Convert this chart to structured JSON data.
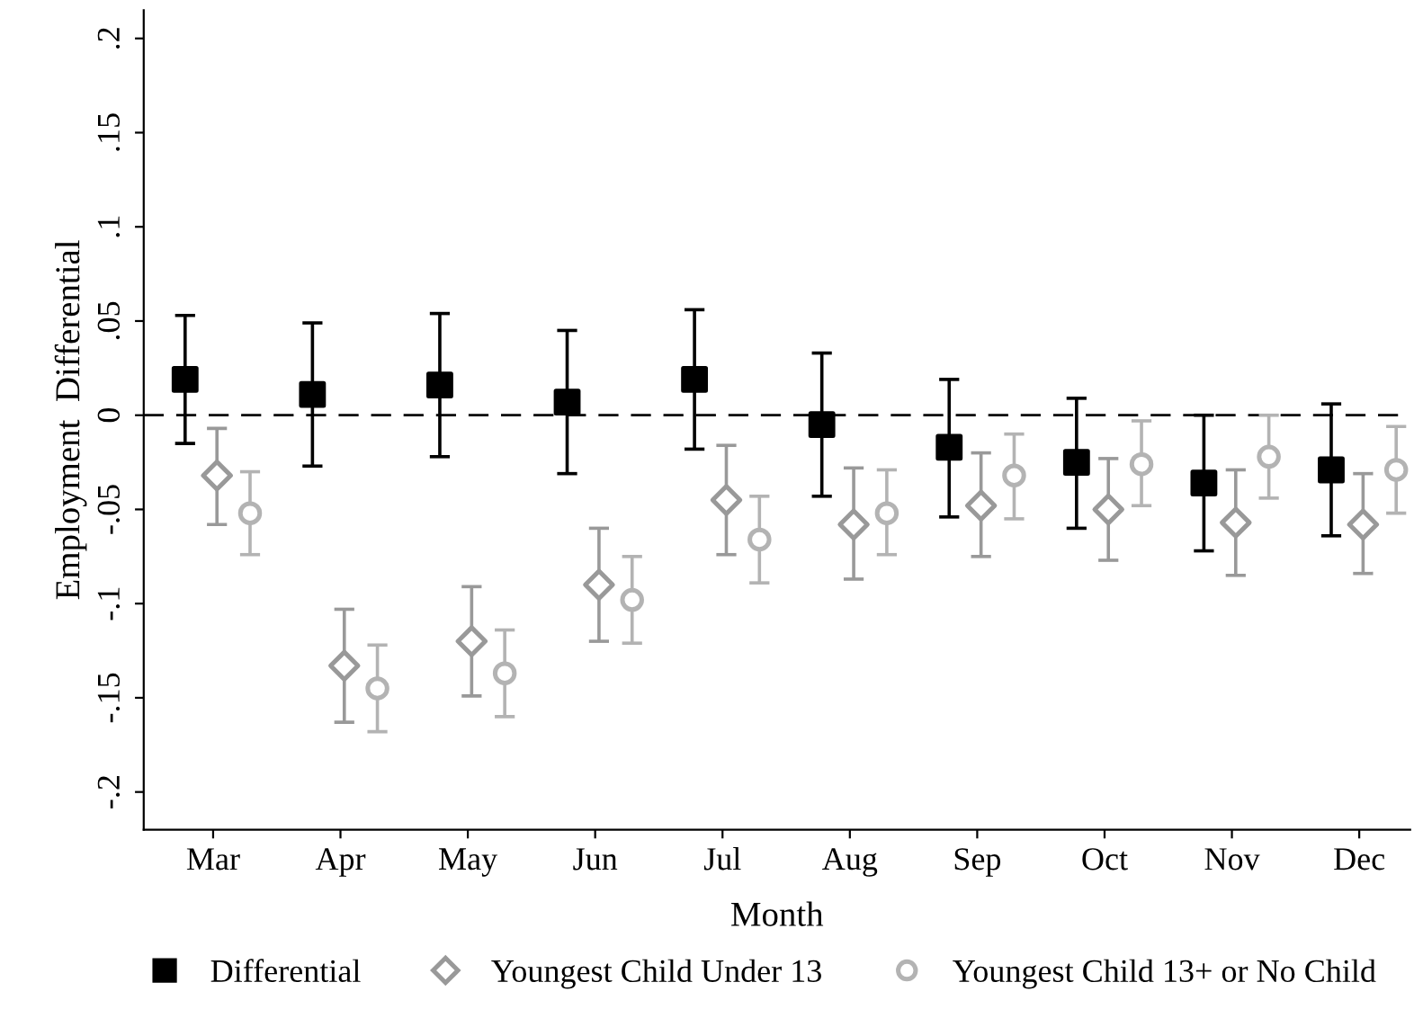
{
  "chart_data": {
    "type": "scatter",
    "xlabel": "Month",
    "ylabel": "Employment  Differential",
    "categories": [
      "Mar",
      "Apr",
      "May",
      "Jun",
      "Jul",
      "Aug",
      "Sep",
      "Oct",
      "Nov",
      "Dec"
    ],
    "series": [
      {
        "name": "Differential",
        "color": "#000000",
        "marker": "square",
        "values": [
          0.019,
          0.011,
          0.016,
          0.007,
          0.019,
          -0.005,
          -0.017,
          -0.025,
          -0.036,
          -0.029
        ],
        "errors": [
          [
            -0.015,
            0.053
          ],
          [
            -0.027,
            0.049
          ],
          [
            -0.022,
            0.054
          ],
          [
            -0.031,
            0.045
          ],
          [
            -0.018,
            0.056
          ],
          [
            -0.043,
            0.033
          ],
          [
            -0.054,
            0.019
          ],
          [
            -0.06,
            0.009
          ],
          [
            -0.072,
            0.0
          ],
          [
            -0.064,
            0.006
          ]
        ]
      },
      {
        "name": "Youngest Child Under 13",
        "color": "#999999",
        "marker": "diamond",
        "values": [
          -0.032,
          -0.133,
          -0.12,
          -0.09,
          -0.045,
          -0.058,
          -0.048,
          -0.05,
          -0.057,
          -0.058
        ],
        "errors": [
          [
            -0.058,
            -0.007
          ],
          [
            -0.163,
            -0.103
          ],
          [
            -0.149,
            -0.091
          ],
          [
            -0.12,
            -0.06
          ],
          [
            -0.074,
            -0.016
          ],
          [
            -0.087,
            -0.028
          ],
          [
            -0.075,
            -0.02
          ],
          [
            -0.077,
            -0.023
          ],
          [
            -0.085,
            -0.029
          ],
          [
            -0.084,
            -0.031
          ]
        ]
      },
      {
        "name": "Youngest Child 13+ or No Child",
        "color": "#b3b3b3",
        "marker": "circle",
        "values": [
          -0.052,
          -0.145,
          -0.137,
          -0.098,
          -0.066,
          -0.052,
          -0.032,
          -0.026,
          -0.022,
          -0.029
        ],
        "errors": [
          [
            -0.074,
            -0.03
          ],
          [
            -0.168,
            -0.122
          ],
          [
            -0.16,
            -0.114
          ],
          [
            -0.121,
            -0.075
          ],
          [
            -0.089,
            -0.043
          ],
          [
            -0.074,
            -0.029
          ],
          [
            -0.055,
            -0.01
          ],
          [
            -0.048,
            -0.003
          ],
          [
            -0.044,
            0.0
          ],
          [
            -0.052,
            -0.006
          ]
        ]
      }
    ],
    "ylim": [
      -0.22,
      0.215
    ],
    "yticks": [
      {
        "value": 0.2,
        "label": ".2"
      },
      {
        "value": 0.15,
        "label": ".15"
      },
      {
        "value": 0.1,
        "label": ".1"
      },
      {
        "value": 0.05,
        "label": ".05"
      },
      0,
      {
        "value": -0.05,
        "label": "-.05"
      },
      {
        "value": -0.1,
        "label": "-.1"
      },
      {
        "value": -0.15,
        "label": "-.15"
      },
      {
        "value": -0.2,
        "label": "-.2"
      }
    ],
    "ref_lines": [
      {
        "axis": "y",
        "value": 0,
        "color": "#000000",
        "line_style": "dashed"
      }
    ],
    "grid": false,
    "legend": "bottom"
  }
}
